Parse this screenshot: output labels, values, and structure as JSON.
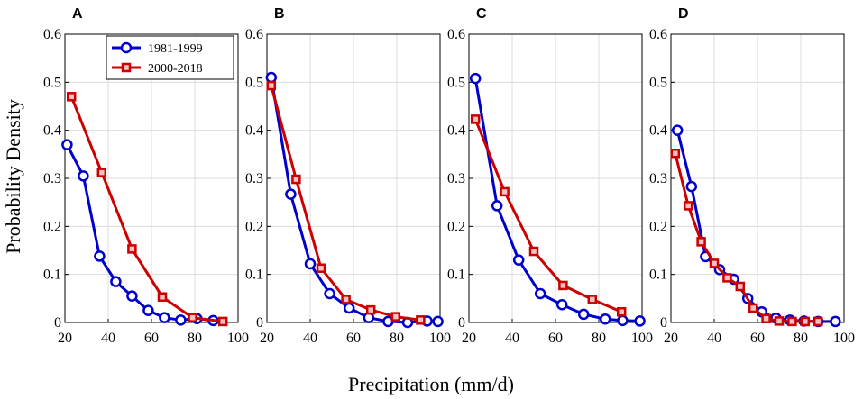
{
  "figure": {
    "xlabel": "Precipitation (mm/d)",
    "ylabel": "Probability Density"
  },
  "chart_data": [
    {
      "type": "line",
      "panel": "A",
      "xlim": [
        20,
        100
      ],
      "ylim": [
        0,
        0.6
      ],
      "xticks": [
        "20",
        "40",
        "60",
        "80",
        "100"
      ],
      "yticks": [
        "0",
        "0.1",
        "0.2",
        "0.3",
        "0.4",
        "0.5",
        "0.6"
      ],
      "grid": true,
      "legend": {
        "placement": "top-right",
        "entries": [
          "1981-1999",
          "2000-2018"
        ]
      },
      "series": [
        {
          "name": "1981-1999",
          "color": "#0000cc",
          "marker": "circle",
          "x": [
            21,
            28.5,
            36,
            43.5,
            51,
            58.5,
            66,
            73.5,
            81,
            88.5
          ],
          "y": [
            0.37,
            0.305,
            0.138,
            0.085,
            0.055,
            0.025,
            0.01,
            0.005,
            0.008,
            0.004
          ]
        },
        {
          "name": "2000-2018",
          "color": "#cc0000",
          "marker": "square",
          "x": [
            23,
            37,
            51,
            65,
            79,
            93
          ],
          "y": [
            0.47,
            0.312,
            0.153,
            0.053,
            0.01,
            0.002
          ]
        }
      ]
    },
    {
      "type": "line",
      "panel": "B",
      "xlim": [
        20,
        100
      ],
      "ylim": [
        0,
        0.6
      ],
      "xticks": [
        "20",
        "40",
        "60",
        "80",
        "100"
      ],
      "yticks": [
        "0",
        "0.1",
        "0.2",
        "0.3",
        "0.4",
        "0.5",
        "0.6"
      ],
      "grid": true,
      "series": [
        {
          "name": "1981-1999",
          "color": "#0000cc",
          "marker": "circle",
          "x": [
            22,
            31,
            40,
            49,
            58,
            67,
            76,
            85,
            94,
            99
          ],
          "y": [
            0.51,
            0.267,
            0.122,
            0.06,
            0.03,
            0.01,
            0.002,
            0,
            0.003,
            0.002
          ]
        },
        {
          "name": "2000-2018",
          "color": "#cc0000",
          "marker": "square",
          "x": [
            22,
            33.5,
            45,
            56.5,
            68,
            79.5,
            91
          ],
          "y": [
            0.493,
            0.298,
            0.113,
            0.048,
            0.026,
            0.012,
            0.005
          ]
        }
      ]
    },
    {
      "type": "line",
      "panel": "C",
      "xlim": [
        20,
        100
      ],
      "ylim": [
        0,
        0.6
      ],
      "xticks": [
        "20",
        "40",
        "60",
        "80",
        "100"
      ],
      "yticks": [
        "0",
        "0.1",
        "0.2",
        "0.3",
        "0.4",
        "0.5",
        "0.6"
      ],
      "grid": true,
      "series": [
        {
          "name": "1981-1999",
          "color": "#0000cc",
          "marker": "circle",
          "x": [
            23,
            33,
            43,
            53,
            63,
            73,
            83,
            91,
            99
          ],
          "y": [
            0.508,
            0.243,
            0.13,
            0.06,
            0.037,
            0.017,
            0.007,
            0.004,
            0.003
          ]
        },
        {
          "name": "2000-2018",
          "color": "#cc0000",
          "marker": "square",
          "x": [
            23,
            36.5,
            50,
            63.5,
            77,
            90.5
          ],
          "y": [
            0.423,
            0.272,
            0.148,
            0.077,
            0.048,
            0.022
          ]
        }
      ]
    },
    {
      "type": "line",
      "panel": "D",
      "xlim": [
        20,
        100
      ],
      "ylim": [
        0,
        0.6
      ],
      "xticks": [
        "20",
        "40",
        "60",
        "80",
        "100"
      ],
      "yticks": [
        "0",
        "0.1",
        "0.2",
        "0.3",
        "0.4",
        "0.5",
        "0.6"
      ],
      "grid": true,
      "series": [
        {
          "name": "1981-1999",
          "color": "#0000cc",
          "marker": "circle",
          "x": [
            23,
            29.5,
            36,
            42.5,
            49,
            55.5,
            62,
            68.5,
            75,
            81.5,
            88,
            96
          ],
          "y": [
            0.4,
            0.283,
            0.137,
            0.11,
            0.09,
            0.05,
            0.022,
            0.009,
            0.005,
            0.003,
            0.002,
            0.002
          ]
        },
        {
          "name": "2000-2018",
          "color": "#cc0000",
          "marker": "square",
          "x": [
            22,
            28,
            34,
            40,
            46,
            52,
            58,
            64,
            70,
            76,
            82,
            88
          ],
          "y": [
            0.352,
            0.243,
            0.168,
            0.123,
            0.093,
            0.075,
            0.03,
            0.008,
            0.003,
            0.002,
            0.002,
            0.002
          ]
        }
      ]
    }
  ]
}
